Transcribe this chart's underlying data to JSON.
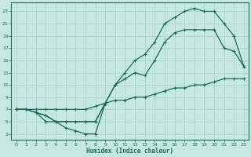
{
  "xlabel": "Humidex (Indice chaleur)",
  "xlim": [
    -0.5,
    23.5
  ],
  "ylim": [
    2.0,
    24.5
  ],
  "xticks": [
    0,
    1,
    2,
    3,
    4,
    5,
    6,
    7,
    8,
    9,
    10,
    11,
    12,
    13,
    14,
    15,
    16,
    17,
    18,
    19,
    20,
    21,
    22,
    23
  ],
  "yticks": [
    3,
    5,
    7,
    9,
    11,
    13,
    15,
    17,
    19,
    21,
    23
  ],
  "bg_color": "#c5e8e2",
  "line_color": "#1a6b5a",
  "grid_color": "#b0d8d0",
  "line_upper_x": [
    0,
    1,
    2,
    3,
    4,
    5,
    6,
    7,
    8,
    9,
    10,
    11,
    12,
    13,
    14,
    15,
    16,
    17,
    18,
    19,
    20,
    21,
    22,
    23
  ],
  "line_upper_y": [
    7,
    7,
    6.5,
    6,
    5,
    5,
    5,
    5,
    5,
    8,
    11,
    13,
    15,
    16,
    18,
    21,
    22,
    23,
    23.5,
    23,
    23,
    21,
    19,
    14
  ],
  "line_mid_x": [
    0,
    1,
    2,
    3,
    4,
    5,
    6,
    7,
    8,
    9,
    10,
    11,
    12,
    13,
    14,
    15,
    16,
    17,
    18,
    19,
    20,
    21,
    22,
    23
  ],
  "line_mid_y": [
    7,
    7,
    6.5,
    6,
    5,
    5,
    5,
    5,
    5,
    8,
    11,
    12,
    13,
    12.5,
    15,
    18,
    19.5,
    20,
    20,
    20,
    20,
    17,
    16.5,
    14
  ],
  "line_dip_x": [
    0,
    1,
    2,
    3,
    4,
    5,
    6,
    7,
    8,
    9
  ],
  "line_dip_y": [
    7,
    7,
    6.5,
    5,
    5,
    4,
    3.5,
    3,
    3,
    8
  ],
  "line_base_x": [
    0,
    1,
    2,
    3,
    4,
    5,
    6,
    7,
    8,
    9,
    10,
    11,
    12,
    13,
    14,
    15,
    16,
    17,
    18,
    19,
    20,
    21,
    22,
    23
  ],
  "line_base_y": [
    7,
    7,
    7,
    7,
    7,
    7,
    7,
    7,
    7.5,
    8,
    8.5,
    8.5,
    9,
    9,
    9.5,
    10,
    10.5,
    10.5,
    11,
    11,
    11.5,
    12,
    12,
    12
  ]
}
